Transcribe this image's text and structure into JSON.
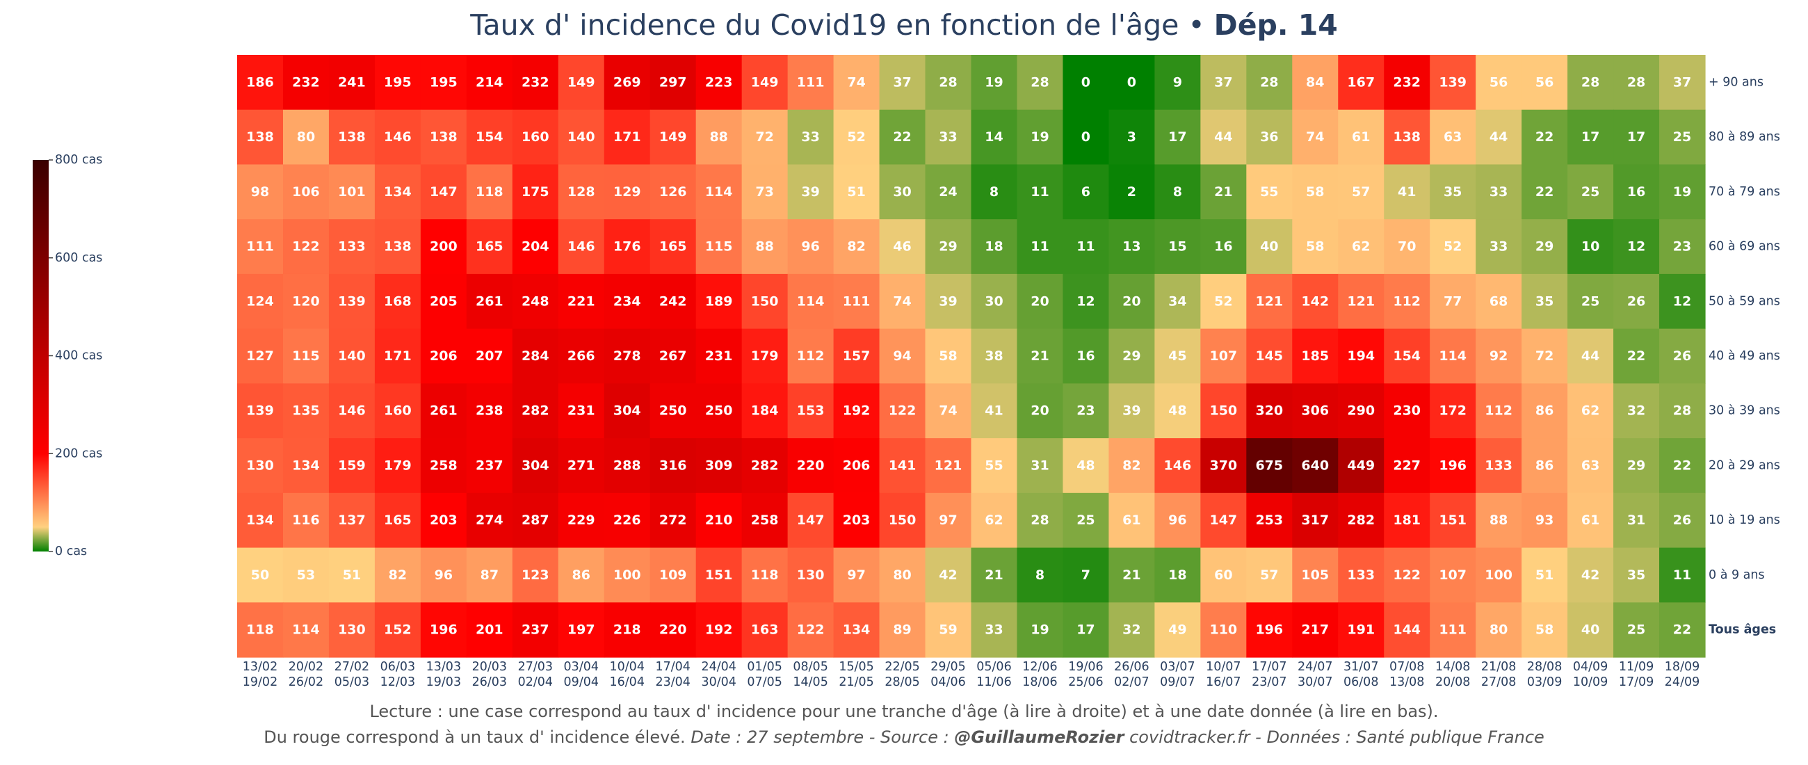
{
  "title": {
    "main": "Taux d' incidence du Covid19 en fonction de l'âge",
    "separator": " • ",
    "dept": "Dép. 14"
  },
  "footer": {
    "line1": "Lecture : une case correspond au taux d' incidence pour une tranche d'âge (à lire à droite) et à une date donnée (à lire en bas).",
    "line2_text": "Du rouge correspond à un taux d' incidence élevé.  ",
    "line2_date": "Date : 27 septembre - Source : ",
    "line2_author": "@GuillaumeRozier",
    "line2_rest": " covidtracker.fr - Données : Santé publique France"
  },
  "colorbar": {
    "ticks": [
      {
        "value": 800,
        "label": "800 cas"
      },
      {
        "value": 600,
        "label": "600 cas"
      },
      {
        "value": 400,
        "label": "400 cas"
      },
      {
        "value": 200,
        "label": "200 cas"
      },
      {
        "value": 0,
        "label": "0 cas"
      }
    ],
    "stops": [
      {
        "at": 0,
        "color": "#008000"
      },
      {
        "at": 0.0625,
        "color": "#ffd180"
      },
      {
        "at": 0.25,
        "color": "#ff0000"
      },
      {
        "at": 0.5,
        "color": "#c00000"
      },
      {
        "at": 1,
        "color": "#3a0000"
      }
    ]
  },
  "chart_data": {
    "type": "heatmap",
    "zlim": [
      0,
      800
    ],
    "x_labels": [
      [
        "13/02",
        "19/02"
      ],
      [
        "20/02",
        "26/02"
      ],
      [
        "27/02",
        "05/03"
      ],
      [
        "06/03",
        "12/03"
      ],
      [
        "13/03",
        "19/03"
      ],
      [
        "20/03",
        "26/03"
      ],
      [
        "27/03",
        "02/04"
      ],
      [
        "03/04",
        "09/04"
      ],
      [
        "10/04",
        "16/04"
      ],
      [
        "17/04",
        "23/04"
      ],
      [
        "24/04",
        "30/04"
      ],
      [
        "01/05",
        "07/05"
      ],
      [
        "08/05",
        "14/05"
      ],
      [
        "15/05",
        "21/05"
      ],
      [
        "22/05",
        "28/05"
      ],
      [
        "29/05",
        "04/06"
      ],
      [
        "05/06",
        "11/06"
      ],
      [
        "12/06",
        "18/06"
      ],
      [
        "19/06",
        "25/06"
      ],
      [
        "26/06",
        "02/07"
      ],
      [
        "03/07",
        "09/07"
      ],
      [
        "10/07",
        "16/07"
      ],
      [
        "17/07",
        "23/07"
      ],
      [
        "24/07",
        "30/07"
      ],
      [
        "31/07",
        "06/08"
      ],
      [
        "07/08",
        "13/08"
      ],
      [
        "14/08",
        "20/08"
      ],
      [
        "21/08",
        "27/08"
      ],
      [
        "28/08",
        "03/09"
      ],
      [
        "04/09",
        "10/09"
      ],
      [
        "11/09",
        "17/09"
      ],
      [
        "18/09",
        "24/09"
      ]
    ],
    "rows": [
      {
        "label": "+ 90 ans",
        "bold": false,
        "values": [
          186,
          232,
          241,
          195,
          195,
          214,
          232,
          149,
          269,
          297,
          223,
          149,
          111,
          74,
          37,
          28,
          19,
          28,
          0,
          0,
          9,
          37,
          28,
          84,
          167,
          232,
          139,
          56,
          56,
          28,
          28,
          37
        ]
      },
      {
        "label": "80 à 89 ans",
        "bold": false,
        "values": [
          138,
          80,
          138,
          146,
          138,
          154,
          160,
          140,
          171,
          149,
          88,
          72,
          33,
          52,
          22,
          33,
          14,
          19,
          0,
          3,
          17,
          44,
          36,
          74,
          61,
          138,
          63,
          44,
          22,
          17,
          17,
          25
        ]
      },
      {
        "label": "70 à 79 ans",
        "bold": false,
        "values": [
          98,
          106,
          101,
          134,
          147,
          118,
          175,
          128,
          129,
          126,
          114,
          73,
          39,
          51,
          30,
          24,
          8,
          11,
          6,
          2,
          8,
          21,
          55,
          58,
          57,
          41,
          35,
          33,
          22,
          25,
          16,
          19
        ]
      },
      {
        "label": "60 à 69 ans",
        "bold": false,
        "values": [
          111,
          122,
          133,
          138,
          200,
          165,
          204,
          146,
          176,
          165,
          115,
          88,
          96,
          82,
          46,
          29,
          18,
          11,
          11,
          13,
          15,
          16,
          40,
          58,
          62,
          70,
          52,
          33,
          29,
          10,
          12,
          23
        ]
      },
      {
        "label": "50 à 59 ans",
        "bold": false,
        "values": [
          124,
          120,
          139,
          168,
          205,
          261,
          248,
          221,
          234,
          242,
          189,
          150,
          114,
          111,
          74,
          39,
          30,
          20,
          12,
          20,
          34,
          52,
          121,
          142,
          121,
          112,
          77,
          68,
          35,
          25,
          26,
          12
        ]
      },
      {
        "label": "40 à 49 ans",
        "bold": false,
        "values": [
          127,
          115,
          140,
          171,
          206,
          207,
          284,
          266,
          278,
          267,
          231,
          179,
          112,
          157,
          94,
          58,
          38,
          21,
          16,
          29,
          45,
          107,
          145,
          185,
          194,
          154,
          114,
          92,
          72,
          44,
          22,
          26
        ]
      },
      {
        "label": "30 à 39 ans",
        "bold": false,
        "values": [
          139,
          135,
          146,
          160,
          261,
          238,
          282,
          231,
          304,
          250,
          250,
          184,
          153,
          192,
          122,
          74,
          41,
          20,
          23,
          39,
          48,
          150,
          320,
          306,
          290,
          230,
          172,
          112,
          86,
          62,
          32,
          28
        ]
      },
      {
        "label": "20 à 29 ans",
        "bold": false,
        "values": [
          130,
          134,
          159,
          179,
          258,
          237,
          304,
          271,
          288,
          316,
          309,
          282,
          220,
          206,
          141,
          121,
          55,
          31,
          48,
          82,
          146,
          370,
          675,
          640,
          449,
          227,
          196,
          133,
          86,
          63,
          29,
          22
        ]
      },
      {
        "label": "10 à 19 ans",
        "bold": false,
        "values": [
          134,
          116,
          137,
          165,
          203,
          274,
          287,
          229,
          226,
          272,
          210,
          258,
          147,
          203,
          150,
          97,
          62,
          28,
          25,
          61,
          96,
          147,
          253,
          317,
          282,
          181,
          151,
          88,
          93,
          61,
          31,
          26
        ]
      },
      {
        "label": "0 à 9 ans",
        "bold": false,
        "values": [
          50,
          53,
          51,
          82,
          96,
          87,
          123,
          86,
          100,
          109,
          151,
          118,
          130,
          97,
          80,
          42,
          21,
          8,
          7,
          21,
          18,
          60,
          57,
          105,
          133,
          122,
          107,
          100,
          51,
          42,
          35,
          11
        ]
      },
      {
        "label": "Tous âges",
        "bold": true,
        "values": [
          118,
          114,
          130,
          152,
          196,
          201,
          237,
          197,
          218,
          220,
          192,
          163,
          122,
          134,
          89,
          59,
          33,
          19,
          17,
          32,
          49,
          110,
          196,
          217,
          191,
          144,
          111,
          80,
          58,
          40,
          25,
          22
        ]
      }
    ]
  }
}
